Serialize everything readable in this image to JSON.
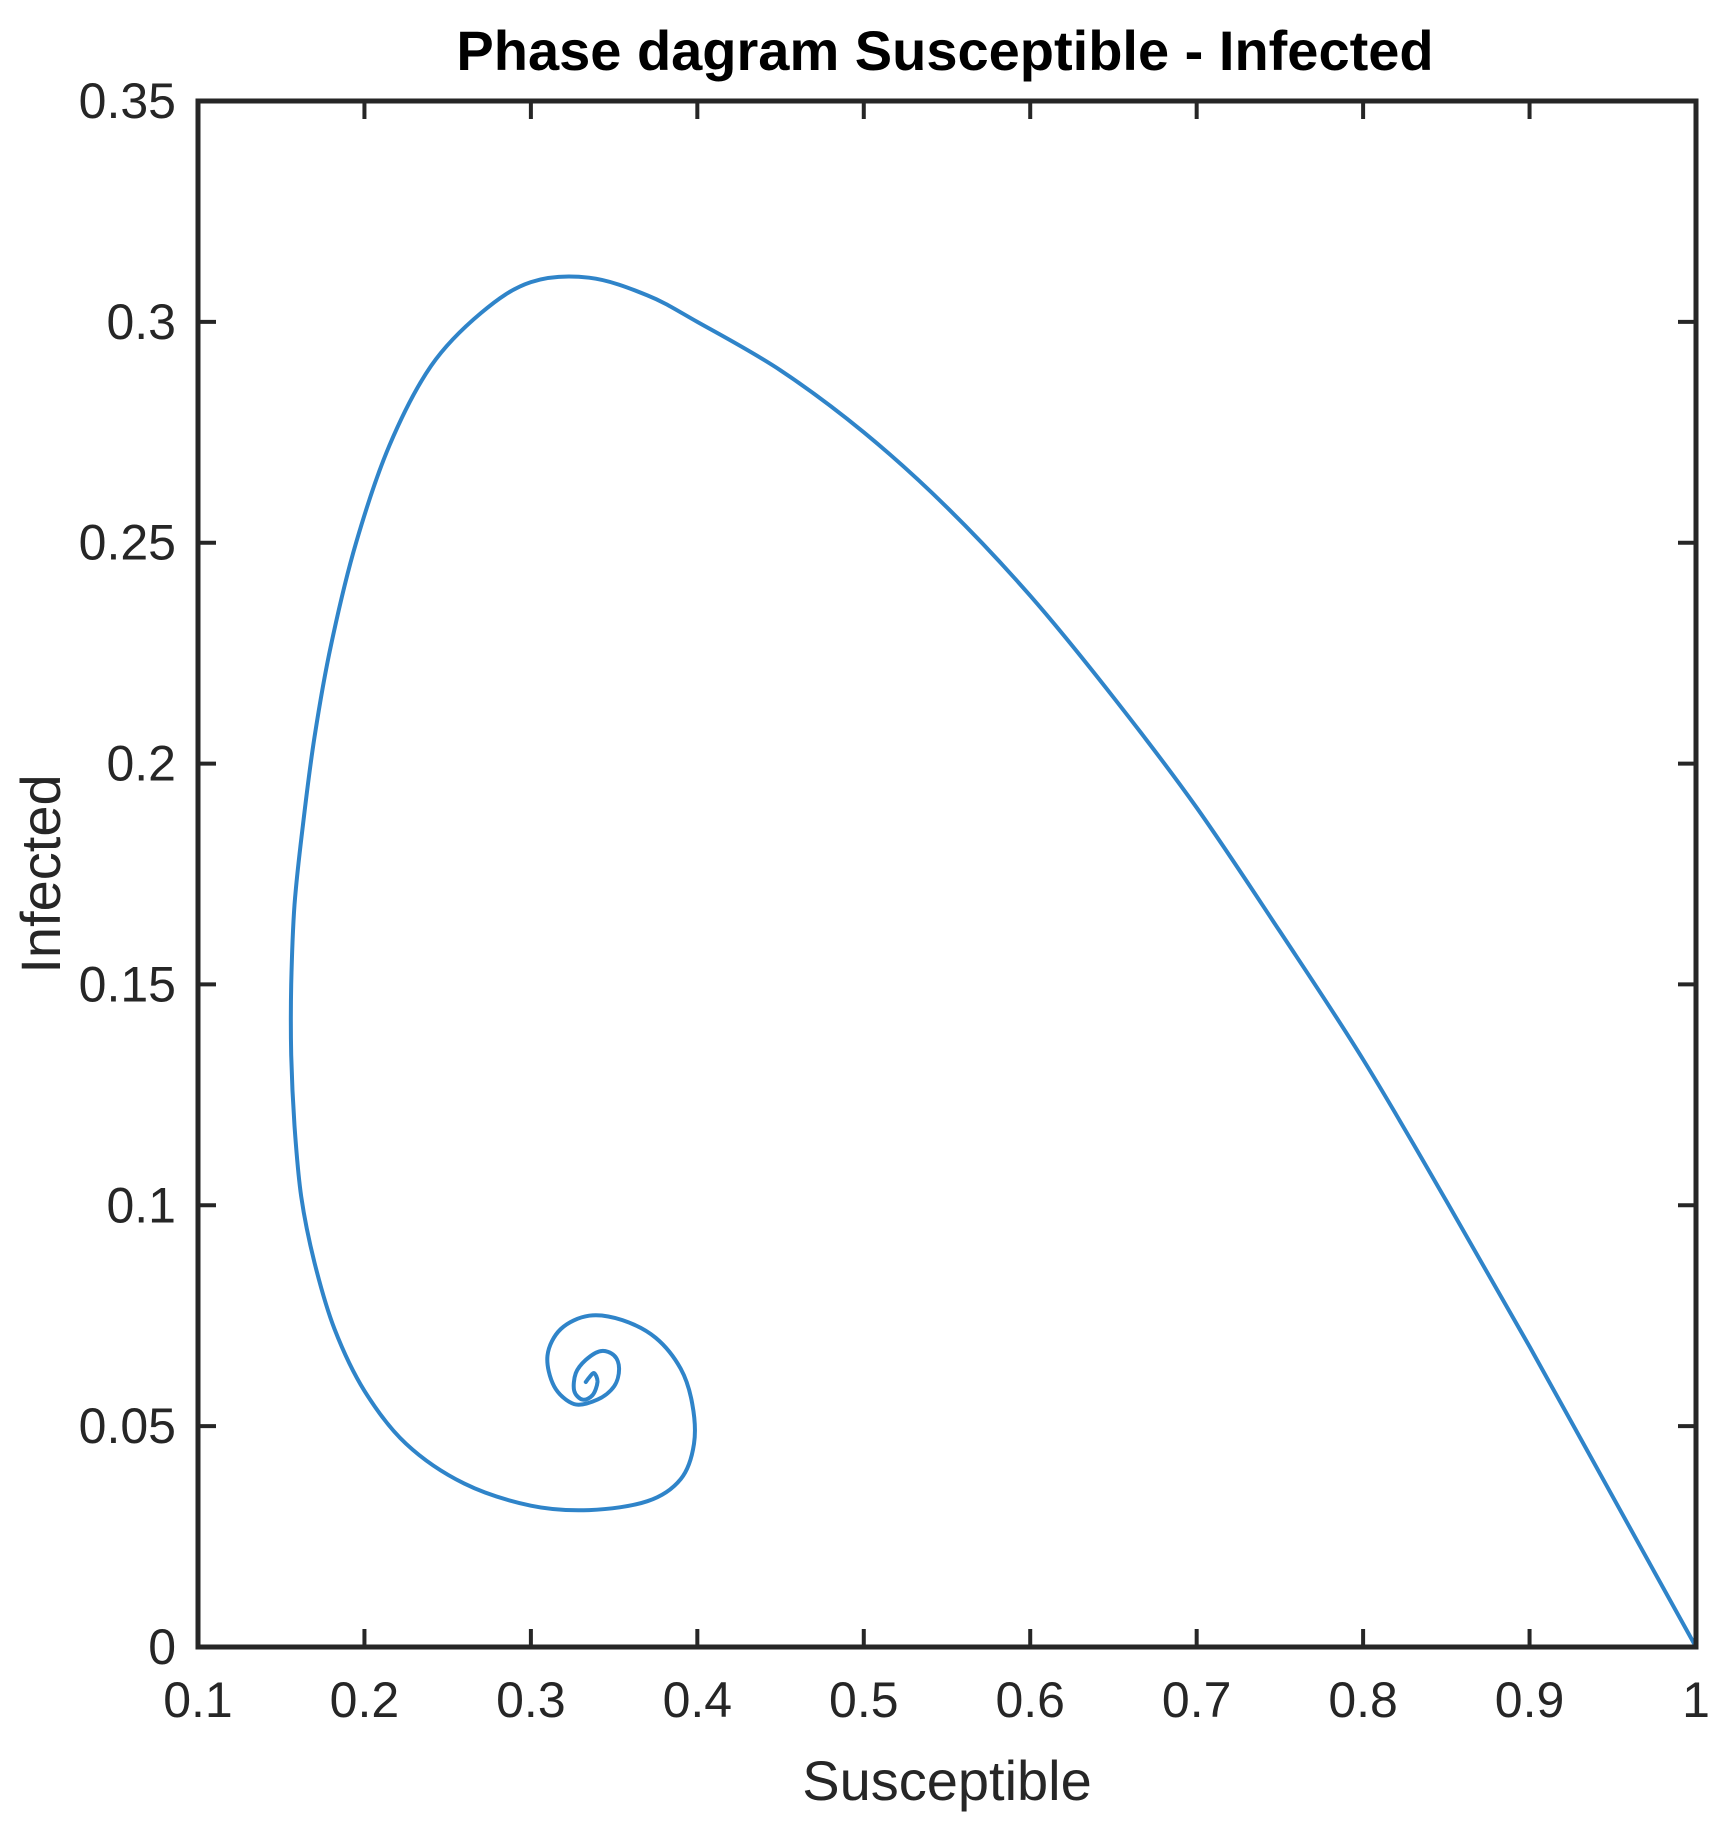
{
  "chart_data": {
    "type": "line",
    "title": "Phase dagram Susceptible - Infected",
    "xlabel": "Susceptible",
    "ylabel": "Infected",
    "xlim": [
      0.1,
      1
    ],
    "ylim": [
      0,
      0.35
    ],
    "xticks": [
      "0.1",
      "0.2",
      "0.3",
      "0.4",
      "0.5",
      "0.6",
      "0.7",
      "0.8",
      "0.9",
      "1"
    ],
    "yticks": [
      "0",
      "0.05",
      "0.1",
      "0.15",
      "0.2",
      "0.25",
      "0.3",
      "0.35"
    ],
    "grid": false,
    "box": true,
    "colors": {
      "line": "#2f84c9",
      "axes": "#262626",
      "text": "#262626"
    },
    "series": [
      {
        "x": [
          1.0,
          0.95,
          0.9,
          0.85,
          0.8,
          0.75,
          0.7,
          0.65,
          0.6,
          0.55,
          0.5,
          0.45,
          0.4,
          0.37,
          0.335,
          0.3,
          0.27,
          0.24,
          0.215,
          0.195,
          0.18,
          0.17,
          0.163,
          0.158,
          0.156,
          0.156,
          0.158,
          0.162,
          0.17,
          0.182,
          0.2,
          0.225,
          0.26,
          0.3,
          0.335,
          0.37,
          0.39,
          0.398,
          0.397,
          0.39,
          0.375,
          0.355,
          0.335,
          0.318,
          0.31,
          0.314,
          0.326,
          0.34,
          0.35,
          0.353,
          0.35,
          0.342,
          0.333,
          0.327,
          0.326,
          0.331,
          0.337,
          0.34,
          0.338,
          0.335,
          0.333
        ],
        "y": [
          0.0,
          0.034,
          0.068,
          0.101,
          0.133,
          0.162,
          0.19,
          0.215,
          0.238,
          0.258,
          0.275,
          0.289,
          0.3,
          0.306,
          0.31,
          0.309,
          0.302,
          0.29,
          0.272,
          0.25,
          0.227,
          0.206,
          0.186,
          0.168,
          0.15,
          0.134,
          0.118,
          0.102,
          0.087,
          0.072,
          0.058,
          0.046,
          0.037,
          0.032,
          0.031,
          0.033,
          0.038,
          0.046,
          0.055,
          0.063,
          0.07,
          0.074,
          0.075,
          0.072,
          0.066,
          0.059,
          0.055,
          0.056,
          0.059,
          0.063,
          0.066,
          0.067,
          0.065,
          0.062,
          0.058,
          0.056,
          0.057,
          0.06,
          0.062,
          0.061,
          0.06
        ]
      }
    ]
  }
}
